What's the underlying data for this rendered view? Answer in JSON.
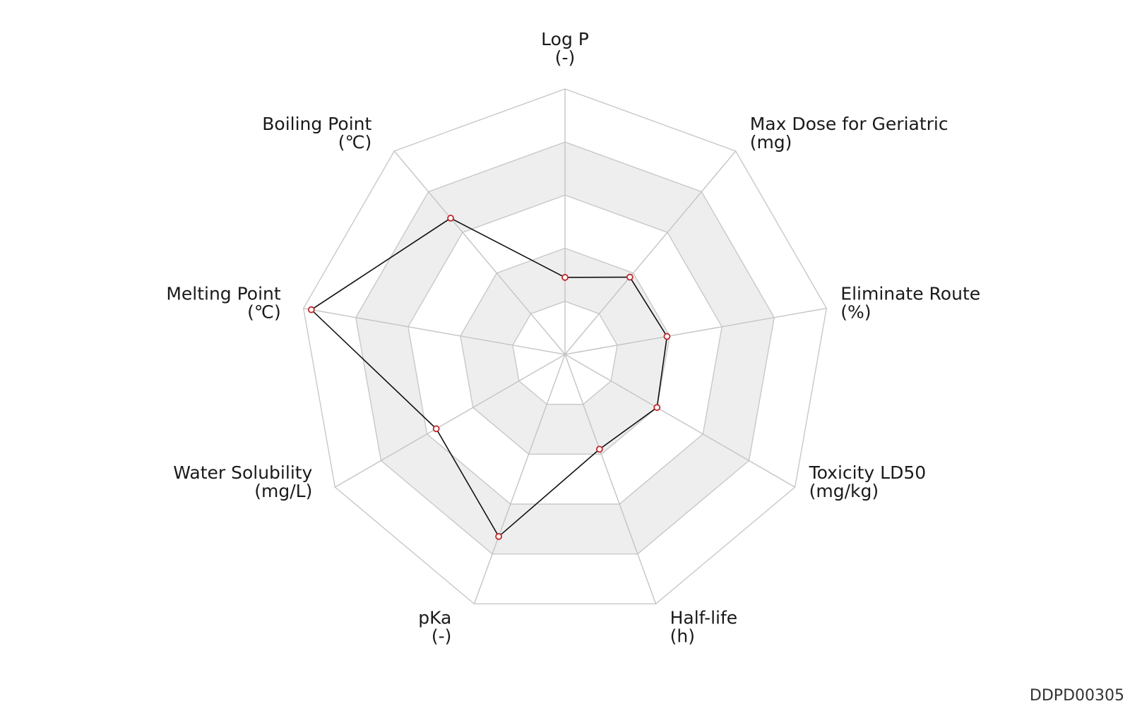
{
  "chart_data": {
    "type": "radar",
    "axes": [
      {
        "name": "Log P",
        "unit": "(-)"
      },
      {
        "name": "Max Dose for Geriatric",
        "unit": "(mg)"
      },
      {
        "name": "Eliminate Route",
        "unit": "(%)"
      },
      {
        "name": "Toxicity LD50",
        "unit": "(mg/kg)"
      },
      {
        "name": "Half-life",
        "unit": "(h)"
      },
      {
        "name": "pKa",
        "unit": "(-)"
      },
      {
        "name": "Water Solubility",
        "unit": "(mg/L)"
      },
      {
        "name": "Melting Point",
        "unit": "(℃)"
      },
      {
        "name": "Boiling Point",
        "unit": "(℃)"
      }
    ],
    "rings": 5,
    "range": [
      0,
      1
    ],
    "series": [
      {
        "values": [
          0.29,
          0.38,
          0.39,
          0.4,
          0.38,
          0.73,
          0.56,
          0.97,
          0.67
        ]
      }
    ],
    "colors": {
      "line": "#111111",
      "marker": "#c0282a",
      "band": "#eeeeee",
      "grid": "#c8c8c8"
    }
  },
  "watermark": "DDPD00305"
}
